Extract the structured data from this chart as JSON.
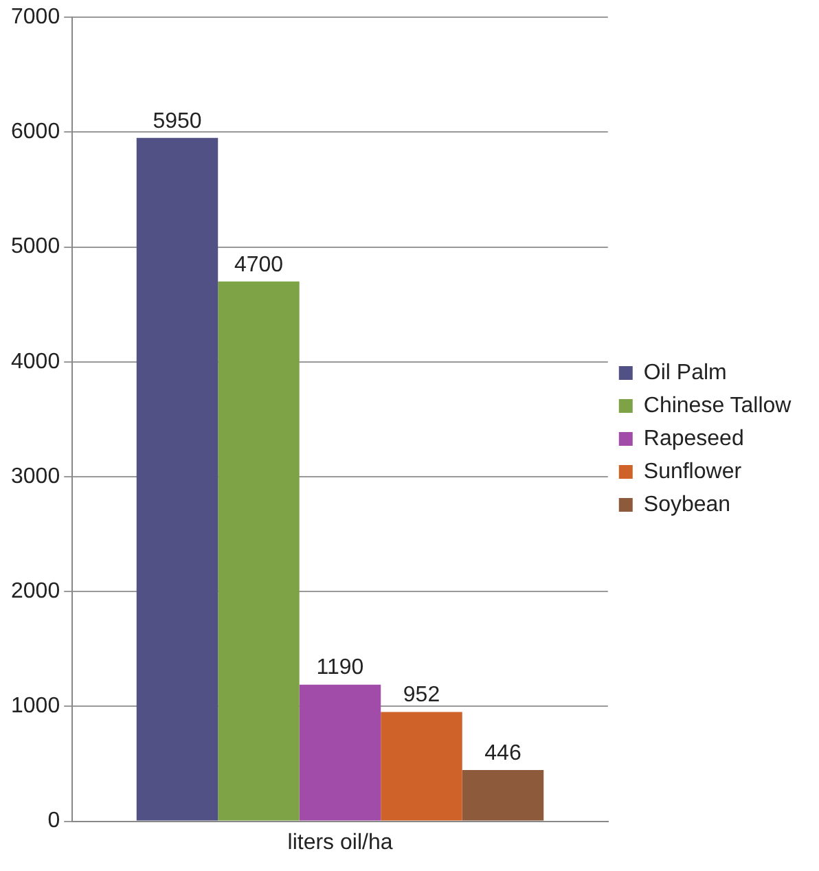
{
  "chart_data": {
    "type": "bar",
    "categories": [
      "liters oil/ha"
    ],
    "series": [
      {
        "name": "Oil Palm",
        "color": "#525185",
        "values": [
          5950
        ]
      },
      {
        "name": "Chinese Tallow",
        "color": "#7ea346",
        "values": [
          4700
        ]
      },
      {
        "name": "Rapeseed",
        "color": "#a04ca8",
        "values": [
          1190
        ]
      },
      {
        "name": "Sunflower",
        "color": "#cf6228",
        "values": [
          952
        ]
      },
      {
        "name": "Soybean",
        "color": "#8d5a3b",
        "values": [
          446
        ]
      }
    ],
    "ylim": [
      0,
      7000
    ],
    "yticks": [
      0,
      1000,
      2000,
      3000,
      4000,
      5000,
      6000,
      7000
    ],
    "grid": "y",
    "legend": "right",
    "data_labels": true
  }
}
